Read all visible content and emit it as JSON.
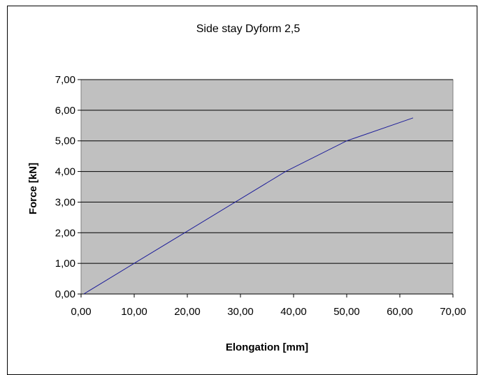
{
  "chart_data": {
    "type": "line",
    "title": "Side stay Dyform 2,5",
    "xlabel": "Elongation [mm]",
    "ylabel": "Force [kN]",
    "xlim": [
      0,
      70
    ],
    "ylim": [
      0,
      7
    ],
    "x_ticks": [
      "0,00",
      "10,00",
      "20,00",
      "30,00",
      "40,00",
      "50,00",
      "60,00",
      "70,00"
    ],
    "y_ticks": [
      "0,00",
      "1,00",
      "2,00",
      "3,00",
      "4,00",
      "5,00",
      "6,00",
      "7,00"
    ],
    "grid": "horizontal",
    "legend": "none",
    "plot_background": "#c0c0c0",
    "line_color": "#1f1f9a",
    "series": [
      {
        "x": [
          0.5,
          10,
          19.5,
          29,
          38.5,
          50,
          62.5
        ],
        "y": [
          0,
          1,
          2,
          3,
          4,
          5,
          5.75
        ]
      }
    ]
  }
}
